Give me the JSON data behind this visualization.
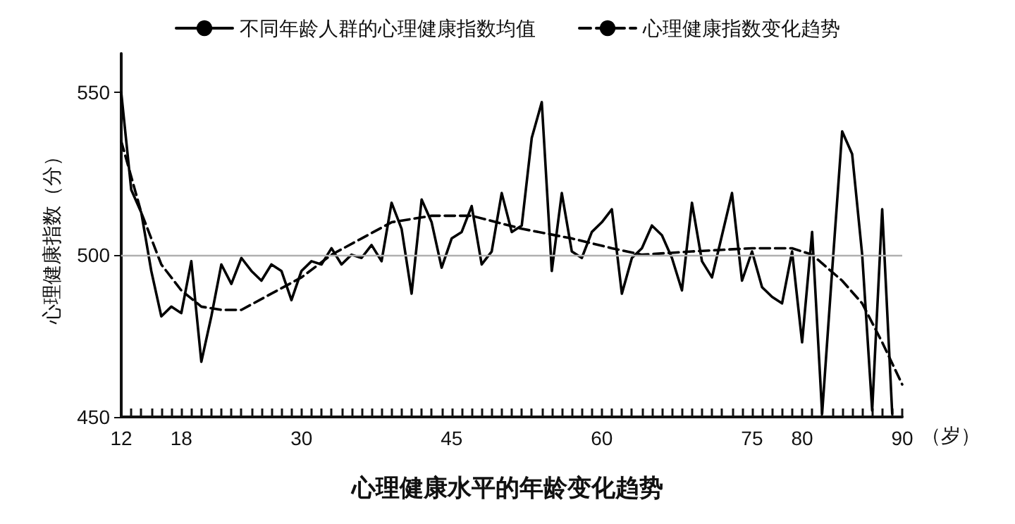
{
  "chart_data": {
    "type": "line",
    "title": "心理健康水平的年龄变化趋势",
    "xlabel": "（岁）",
    "ylabel": "心理健康指数（分）",
    "xlim": [
      12,
      90
    ],
    "xticks": [
      12,
      18,
      30,
      45,
      60,
      75,
      80,
      90
    ],
    "ylim": [
      450,
      562
    ],
    "yticks": [
      450,
      500,
      550
    ],
    "grid": false,
    "legend": "top",
    "marker": "none",
    "ref_lines": [
      {
        "axis": "y",
        "value": 500,
        "color": "#b0b0b0"
      }
    ],
    "series": [
      {
        "name": "不同年龄人群的心理健康指数均值",
        "color": "#000000",
        "line_style": "solid",
        "x": [
          12,
          13,
          14,
          15,
          16,
          17,
          18,
          19,
          20,
          21,
          22,
          23,
          24,
          25,
          26,
          27,
          28,
          29,
          30,
          31,
          32,
          33,
          34,
          35,
          36,
          37,
          38,
          39,
          40,
          41,
          42,
          43,
          44,
          45,
          46,
          47,
          48,
          49,
          50,
          51,
          52,
          53,
          54,
          55,
          56,
          57,
          58,
          59,
          60,
          61,
          62,
          63,
          64,
          65,
          66,
          67,
          68,
          69,
          70,
          71,
          72,
          73,
          74,
          75,
          76,
          77,
          78,
          79,
          80,
          81,
          82,
          83,
          84,
          85,
          86,
          87,
          88,
          89
        ],
        "values": [
          550,
          520,
          513,
          495,
          481,
          484,
          482,
          498,
          467,
          481,
          497,
          491,
          499,
          495,
          492,
          497,
          495,
          486,
          495,
          498,
          497,
          502,
          497,
          500,
          499,
          503,
          498,
          516,
          508,
          488,
          517,
          510,
          496,
          505,
          507,
          515,
          497,
          501,
          519,
          507,
          509,
          536,
          547,
          495,
          519,
          501,
          499,
          507,
          510,
          514,
          488,
          499,
          502,
          509,
          506,
          499,
          489,
          516,
          498,
          493,
          506,
          519,
          492,
          501,
          490,
          487,
          485,
          501,
          473,
          507,
          451,
          495,
          538,
          531,
          500,
          452,
          514,
          451
        ]
      },
      {
        "name": "心理健康指数变化趋势",
        "color": "#000000",
        "line_style": "dashed",
        "x": [
          12,
          14,
          16,
          18,
          20,
          22,
          24,
          27,
          30,
          33,
          36,
          39,
          43,
          47,
          52,
          57,
          61,
          64,
          69,
          75,
          79,
          81,
          84,
          86,
          88,
          90
        ],
        "values": [
          535,
          513,
          497,
          489,
          484,
          483,
          483,
          488,
          493,
          500,
          505,
          510,
          512,
          512,
          508,
          505,
          502,
          500,
          501,
          502,
          502,
          500,
          492,
          485,
          473,
          460
        ]
      }
    ]
  }
}
